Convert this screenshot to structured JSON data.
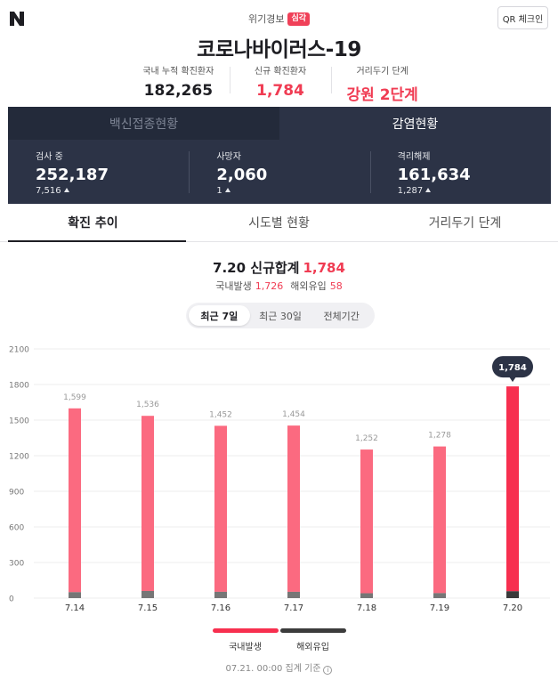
{
  "header": {
    "alert_label": "위기경보",
    "alert_badge": "심각",
    "qr_label": "QR 체크인",
    "title": "코로나바이러스-19",
    "stats": [
      {
        "label": "국내 누적 확진환자",
        "value": "182,265"
      },
      {
        "label": "신규 확진환자",
        "value": "1,784"
      },
      {
        "label": "거리두기 단계",
        "value": "강원 2단계"
      }
    ]
  },
  "panel": {
    "tabs": [
      {
        "label": "백신접종현황",
        "active": false
      },
      {
        "label": "감염현황",
        "active": true
      }
    ],
    "cells": [
      {
        "label": "검사 중",
        "value": "252,187",
        "delta": "7,516"
      },
      {
        "label": "사망자",
        "value": "2,060",
        "delta": "1"
      },
      {
        "label": "격리해제",
        "value": "161,634",
        "delta": "1,287"
      }
    ]
  },
  "tabs": [
    {
      "label": "확진 추이",
      "active": true
    },
    {
      "label": "시도별 현황",
      "active": false
    },
    {
      "label": "거리두기 단계",
      "active": false
    }
  ],
  "summary": {
    "title": "7.20 신규합계",
    "total": "1,784",
    "domestic_label": "국내발생",
    "domestic_value": "1,726",
    "overseas_label": "해외유입",
    "overseas_value": "58"
  },
  "period_buttons": [
    {
      "label": "최근 7일",
      "active": true
    },
    {
      "label": "최근 30일",
      "active": false
    },
    {
      "label": "전체기간",
      "active": false
    }
  ],
  "chart_data": {
    "type": "bar",
    "stacked": true,
    "categories": [
      "7.14",
      "7.15",
      "7.16",
      "7.17",
      "7.18",
      "7.19",
      "7.20"
    ],
    "series": [
      {
        "name": "국내발생",
        "values": [
          1549,
          1476,
          1399,
          1401,
          1211,
          1236,
          1726
        ]
      },
      {
        "name": "해외유입",
        "values": [
          50,
          60,
          53,
          53,
          41,
          42,
          58
        ]
      }
    ],
    "totals": [
      1599,
      1536,
      1452,
      1454,
      1252,
      1278,
      1784
    ],
    "total_labels": [
      "1,599",
      "1,536",
      "1,452",
      "1,454",
      "1,252",
      "1,278",
      "1,784"
    ],
    "highlight_index": 6,
    "ylim": [
      0,
      2100
    ],
    "yticks": [
      0,
      300,
      600,
      900,
      1200,
      1500,
      1800,
      2100
    ],
    "grid": true,
    "colors": {
      "domestic": "#fb6a80",
      "domestic_highlight": "#f72f4f",
      "overseas": "#767676",
      "overseas_highlight": "#3a3a3a",
      "tooltip": "#2c3346"
    }
  },
  "legend": [
    {
      "label": "국내발생",
      "color": "#f72f4f"
    },
    {
      "label": "해외유입",
      "color": "#3c3c3c"
    }
  ],
  "footer": {
    "note": "07.21. 00:00 집계 기준",
    "info_icon": "i"
  }
}
